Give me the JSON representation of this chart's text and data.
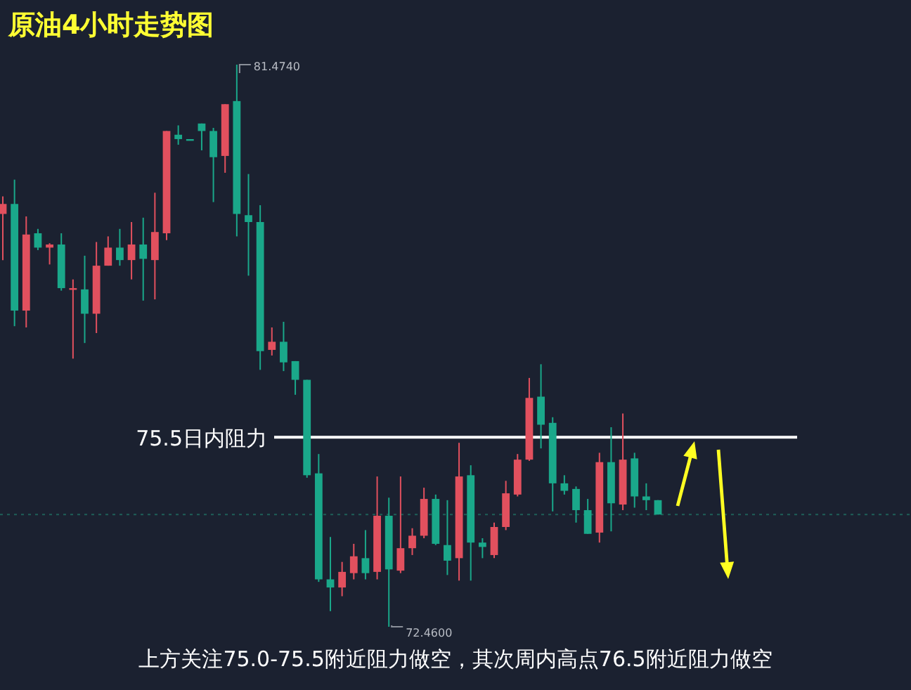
{
  "chart_data": {
    "type": "candlestick",
    "title": "原油4小时走势图",
    "categories": [
      null,
      null,
      null,
      null,
      null,
      null,
      null,
      null,
      null,
      null,
      null,
      null,
      null,
      null,
      null,
      null,
      null,
      null,
      null,
      null,
      null,
      null,
      null,
      null,
      null,
      null,
      null,
      null,
      null,
      null,
      null,
      null,
      null,
      null,
      null,
      null,
      null,
      null,
      null,
      null,
      null,
      null,
      null,
      null,
      null,
      null,
      null,
      null,
      null,
      null,
      null,
      null,
      null,
      null,
      null,
      null,
      null
    ],
    "ohlc": [
      [
        79.08,
        79.36,
        78.34,
        79.24
      ],
      [
        79.24,
        79.63,
        77.28,
        77.53
      ],
      [
        77.53,
        79.04,
        77.26,
        78.75
      ],
      [
        78.77,
        78.84,
        78.5,
        78.54
      ],
      [
        78.54,
        78.61,
        78.27,
        78.59
      ],
      [
        78.59,
        78.77,
        77.85,
        77.89
      ],
      [
        77.87,
        78.03,
        76.76,
        77.89
      ],
      [
        77.87,
        78.41,
        77.01,
        77.48
      ],
      [
        77.48,
        78.63,
        77.17,
        78.25
      ],
      [
        78.25,
        78.72,
        78.25,
        78.54
      ],
      [
        78.54,
        78.84,
        78.25,
        78.34
      ],
      [
        78.34,
        78.95,
        78.03,
        78.59
      ],
      [
        78.59,
        79.02,
        77.69,
        78.36
      ],
      [
        78.34,
        79.42,
        77.71,
        78.79
      ],
      [
        78.77,
        80.41,
        78.66,
        80.41
      ],
      [
        80.35,
        80.5,
        80.19,
        80.28
      ],
      [
        80.28,
        80.28,
        80.28,
        80.28
      ],
      [
        80.53,
        80.53,
        80.1,
        80.41
      ],
      [
        80.41,
        80.46,
        79.27,
        79.99
      ],
      [
        80.01,
        80.84,
        79.74,
        80.84
      ],
      [
        80.89,
        81.474,
        78.72,
        79.08
      ],
      [
        79.06,
        79.72,
        78.09,
        78.95
      ],
      [
        78.95,
        79.22,
        76.58,
        76.88
      ],
      [
        76.9,
        77.26,
        76.81,
        77.03
      ],
      [
        77.03,
        77.35,
        76.56,
        76.7
      ],
      [
        76.72,
        76.72,
        76.18,
        76.42
      ],
      [
        76.42,
        76.42,
        74.85,
        74.89
      ],
      [
        74.92,
        75.23,
        73.18,
        73.22
      ],
      [
        73.22,
        73.9,
        72.71,
        73.09
      ],
      [
        73.09,
        73.5,
        72.95,
        73.34
      ],
      [
        73.32,
        73.79,
        73.22,
        73.59
      ],
      [
        73.56,
        74.01,
        73.22,
        73.32
      ],
      [
        73.34,
        74.87,
        73.22,
        74.24
      ],
      [
        74.24,
        74.53,
        72.46,
        73.38
      ],
      [
        73.36,
        74.87,
        73.32,
        73.72
      ],
      [
        73.72,
        74.04,
        73.61,
        73.92
      ],
      [
        73.92,
        74.69,
        73.88,
        74.51
      ],
      [
        74.51,
        74.58,
        73.77,
        73.79
      ],
      [
        73.77,
        74.49,
        73.29,
        73.52
      ],
      [
        73.56,
        75.41,
        73.2,
        74.87
      ],
      [
        74.89,
        75.05,
        73.2,
        73.81
      ],
      [
        73.81,
        73.88,
        73.56,
        73.74
      ],
      [
        73.61,
        74.13,
        73.56,
        74.06
      ],
      [
        74.06,
        74.8,
        74.01,
        74.6
      ],
      [
        74.58,
        75.23,
        74.55,
        75.14
      ],
      [
        75.14,
        76.45,
        75.12,
        76.13
      ],
      [
        76.15,
        76.67,
        75.32,
        75.7
      ],
      [
        75.73,
        75.82,
        74.31,
        74.76
      ],
      [
        74.76,
        74.89,
        74.58,
        74.64
      ],
      [
        74.67,
        74.71,
        74.13,
        74.33
      ],
      [
        74.33,
        74.51,
        73.95,
        73.95
      ],
      [
        73.97,
        75.25,
        73.81,
        75.1
      ],
      [
        75.1,
        75.66,
        73.99,
        74.44
      ],
      [
        74.42,
        75.88,
        74.33,
        75.14
      ],
      [
        75.16,
        75.25,
        74.37,
        74.55
      ],
      [
        74.55,
        74.76,
        74.33,
        74.49
      ],
      [
        74.49,
        74.49,
        74.26,
        74.26
      ]
    ],
    "colors": [
      "#e2505e",
      "#1aa88a",
      "#e2505e",
      "#1aa88a",
      "#e2505e",
      "#1aa88a",
      "#e2505e",
      "#1aa88a",
      "#e2505e",
      "#e2505e",
      "#1aa88a",
      "#e2505e",
      "#1aa88a",
      "#e2505e",
      "#e2505e",
      "#1aa88a",
      "#1aa88a",
      "#1aa88a",
      "#1aa88a",
      "#e2505e",
      "#1aa88a",
      "#1aa88a",
      "#1aa88a",
      "#e2505e",
      "#1aa88a",
      "#1aa88a",
      "#1aa88a",
      "#1aa88a",
      "#1aa88a",
      "#e2505e",
      "#e2505e",
      "#1aa88a",
      "#e2505e",
      "#1aa88a",
      "#e2505e",
      "#e2505e",
      "#e2505e",
      "#1aa88a",
      "#1aa88a",
      "#e2505e",
      "#1aa88a",
      "#1aa88a",
      "#e2505e",
      "#e2505e",
      "#e2505e",
      "#e2505e",
      "#1aa88a",
      "#1aa88a",
      "#1aa88a",
      "#1aa88a",
      "#1aa88a",
      "#e2505e",
      "#1aa88a",
      "#e2505e",
      "#1aa88a",
      "#1aa88a",
      "#1aa88a"
    ],
    "ref_lines": [
      {
        "axis": "y",
        "value": 75.5,
        "label": "75.5日内阻力",
        "color": "#ffffff",
        "line_style": "solid"
      },
      {
        "axis": "y",
        "value": 74.26,
        "color": "#1f5f58",
        "line_style": "dotted"
      }
    ],
    "annotations": [
      "81.4740",
      "72.4600",
      "上方关注75.0-75.5附近阻力做空，其次周内高点76.5附近阻力做空"
    ]
  }
}
